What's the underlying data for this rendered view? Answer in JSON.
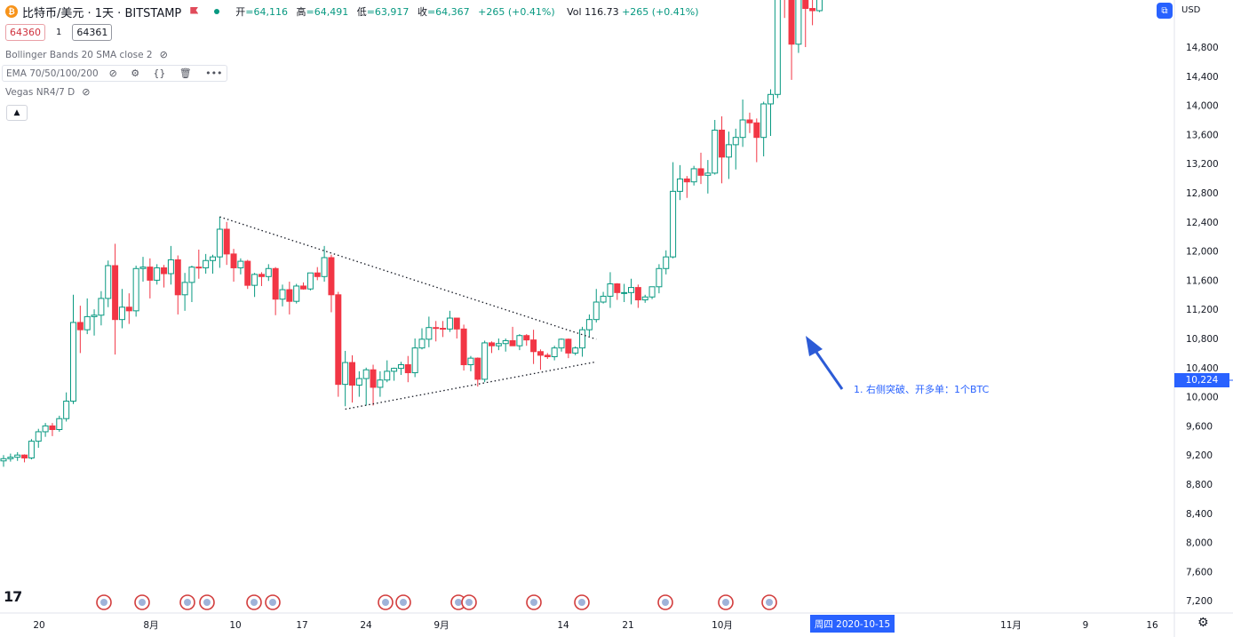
{
  "header": {
    "symbol_icon": "bitcoin-icon",
    "title": "比特币/美元 · 1天 · BITSTAMP",
    "open_label": "开",
    "open": "=64,116",
    "high_label": "高",
    "high": "=64,491",
    "low_label": "低",
    "low": "=63,917",
    "close_label": "收",
    "close": "=64,367",
    "change": "+265 (+0.41%)",
    "vol_label": "Vol",
    "vol": "116.73",
    "vol_change": "+265 (+0.41%)"
  },
  "trade": {
    "sell_price": "64360",
    "spread": "1",
    "buy_price": "64361"
  },
  "indicators": {
    "bollinger": "Bollinger Bands 20 SMA close 2",
    "ema": "EMA 70/50/100/200",
    "vegas": "Vegas NR4/7 D"
  },
  "currency": "USD",
  "annotation": "1. 右侧突破、开多单：1个BTC",
  "current_date": "周四 2020-10-15",
  "current_price": "10,224",
  "colors": {
    "up": "#089981",
    "down": "#f23645",
    "accent": "#2962ff"
  },
  "chart_data": {
    "type": "candlestick",
    "y_ticks": [
      "14,800",
      "14,400",
      "14,000",
      "13,600",
      "13,200",
      "12,800",
      "12,400",
      "12,000",
      "11,600",
      "11,200",
      "10,800",
      "10,400",
      "10,000",
      "9,600",
      "9,200",
      "8,800",
      "8,400",
      "8,000",
      "7,600",
      "7,200"
    ],
    "x_ticks": [
      "20",
      "8月",
      "10",
      "17",
      "24",
      "9月",
      "14",
      "21",
      "10月",
      "",
      "11月",
      "9",
      "16"
    ],
    "ylim": [
      7120,
      15400
    ],
    "candles": [
      {
        "d": "2020-07-17",
        "o": 9120,
        "h": 9200,
        "l": 9040,
        "c": 9150
      },
      {
        "d": "2020-07-18",
        "o": 9150,
        "h": 9220,
        "l": 9110,
        "c": 9170
      },
      {
        "d": "2020-07-19",
        "o": 9170,
        "h": 9240,
        "l": 9120,
        "c": 9200
      },
      {
        "d": "2020-07-20",
        "o": 9200,
        "h": 9210,
        "l": 9100,
        "c": 9160
      },
      {
        "d": "2020-07-21",
        "o": 9160,
        "h": 9420,
        "l": 9140,
        "c": 9390
      },
      {
        "d": "2020-07-22",
        "o": 9390,
        "h": 9560,
        "l": 9300,
        "c": 9520
      },
      {
        "d": "2020-07-23",
        "o": 9520,
        "h": 9640,
        "l": 9450,
        "c": 9600
      },
      {
        "d": "2020-07-24",
        "o": 9600,
        "h": 9640,
        "l": 9460,
        "c": 9550
      },
      {
        "d": "2020-07-25",
        "o": 9550,
        "h": 9740,
        "l": 9520,
        "c": 9700
      },
      {
        "d": "2020-07-26",
        "o": 9700,
        "h": 10060,
        "l": 9660,
        "c": 9940
      },
      {
        "d": "2020-07-27",
        "o": 9940,
        "h": 11400,
        "l": 9900,
        "c": 11020
      },
      {
        "d": "2020-07-28",
        "o": 11020,
        "h": 11250,
        "l": 10600,
        "c": 10920
      },
      {
        "d": "2020-07-29",
        "o": 10920,
        "h": 11350,
        "l": 10860,
        "c": 11100
      },
      {
        "d": "2020-07-30",
        "o": 11100,
        "h": 11200,
        "l": 10840,
        "c": 11120
      },
      {
        "d": "2020-07-31",
        "o": 11120,
        "h": 11450,
        "l": 10980,
        "c": 11350
      },
      {
        "d": "2020-08-01",
        "o": 11350,
        "h": 11870,
        "l": 11230,
        "c": 11800
      },
      {
        "d": "2020-08-02",
        "o": 11800,
        "h": 12100,
        "l": 10580,
        "c": 11060
      },
      {
        "d": "2020-08-03",
        "o": 11060,
        "h": 11480,
        "l": 10940,
        "c": 11230
      },
      {
        "d": "2020-08-04",
        "o": 11230,
        "h": 11420,
        "l": 11000,
        "c": 11180
      },
      {
        "d": "2020-08-05",
        "o": 11180,
        "h": 11800,
        "l": 11100,
        "c": 11760
      },
      {
        "d": "2020-08-06",
        "o": 11760,
        "h": 11920,
        "l": 11580,
        "c": 11780
      },
      {
        "d": "2020-08-07",
        "o": 11780,
        "h": 11900,
        "l": 11350,
        "c": 11600
      },
      {
        "d": "2020-08-08",
        "o": 11600,
        "h": 11820,
        "l": 11540,
        "c": 11770
      },
      {
        "d": "2020-08-09",
        "o": 11770,
        "h": 11810,
        "l": 11500,
        "c": 11690
      },
      {
        "d": "2020-08-10",
        "o": 11690,
        "h": 12070,
        "l": 11540,
        "c": 11880
      },
      {
        "d": "2020-08-11",
        "o": 11880,
        "h": 11940,
        "l": 11130,
        "c": 11400
      },
      {
        "d": "2020-08-12",
        "o": 11400,
        "h": 11700,
        "l": 11180,
        "c": 11570
      },
      {
        "d": "2020-08-13",
        "o": 11570,
        "h": 11800,
        "l": 11300,
        "c": 11780
      },
      {
        "d": "2020-08-14",
        "o": 11780,
        "h": 12020,
        "l": 11620,
        "c": 11770
      },
      {
        "d": "2020-08-15",
        "o": 11770,
        "h": 11960,
        "l": 11690,
        "c": 11870
      },
      {
        "d": "2020-08-16",
        "o": 11870,
        "h": 11950,
        "l": 11690,
        "c": 11920
      },
      {
        "d": "2020-08-17",
        "o": 11920,
        "h": 12470,
        "l": 11770,
        "c": 12300
      },
      {
        "d": "2020-08-18",
        "o": 12300,
        "h": 12400,
        "l": 11810,
        "c": 11960
      },
      {
        "d": "2020-08-19",
        "o": 11960,
        "h": 12030,
        "l": 11580,
        "c": 11770
      },
      {
        "d": "2020-08-20",
        "o": 11770,
        "h": 11900,
        "l": 11680,
        "c": 11860
      },
      {
        "d": "2020-08-21",
        "o": 11860,
        "h": 11880,
        "l": 11480,
        "c": 11530
      },
      {
        "d": "2020-08-22",
        "o": 11530,
        "h": 11700,
        "l": 11370,
        "c": 11680
      },
      {
        "d": "2020-08-23",
        "o": 11680,
        "h": 11710,
        "l": 11520,
        "c": 11650
      },
      {
        "d": "2020-08-24",
        "o": 11650,
        "h": 11820,
        "l": 11590,
        "c": 11760
      },
      {
        "d": "2020-08-25",
        "o": 11760,
        "h": 11780,
        "l": 11120,
        "c": 11340
      },
      {
        "d": "2020-08-26",
        "o": 11340,
        "h": 11540,
        "l": 11240,
        "c": 11470
      },
      {
        "d": "2020-08-27",
        "o": 11470,
        "h": 11580,
        "l": 11130,
        "c": 11310
      },
      {
        "d": "2020-08-28",
        "o": 11310,
        "h": 11550,
        "l": 11280,
        "c": 11520
      },
      {
        "d": "2020-08-29",
        "o": 11520,
        "h": 11570,
        "l": 11470,
        "c": 11480
      },
      {
        "d": "2020-08-30",
        "o": 11480,
        "h": 11700,
        "l": 11460,
        "c": 11700
      },
      {
        "d": "2020-08-31",
        "o": 11700,
        "h": 11780,
        "l": 11600,
        "c": 11650
      },
      {
        "d": "2020-09-01",
        "o": 11650,
        "h": 12070,
        "l": 11580,
        "c": 11910
      },
      {
        "d": "2020-09-02",
        "o": 11910,
        "h": 11950,
        "l": 11160,
        "c": 11400
      },
      {
        "d": "2020-09-03",
        "o": 11400,
        "h": 11440,
        "l": 10000,
        "c": 10170
      },
      {
        "d": "2020-09-04",
        "o": 10170,
        "h": 10630,
        "l": 9870,
        "c": 10470
      },
      {
        "d": "2020-09-05",
        "o": 10470,
        "h": 10570,
        "l": 9920,
        "c": 10160
      },
      {
        "d": "2020-09-06",
        "o": 10160,
        "h": 10350,
        "l": 10000,
        "c": 10250
      },
      {
        "d": "2020-09-07",
        "o": 10250,
        "h": 10400,
        "l": 9880,
        "c": 10370
      },
      {
        "d": "2020-09-08",
        "o": 10370,
        "h": 10440,
        "l": 9880,
        "c": 10130
      },
      {
        "d": "2020-09-09",
        "o": 10130,
        "h": 10350,
        "l": 10000,
        "c": 10230
      },
      {
        "d": "2020-09-10",
        "o": 10230,
        "h": 10500,
        "l": 10200,
        "c": 10350
      },
      {
        "d": "2020-09-11",
        "o": 10350,
        "h": 10400,
        "l": 10220,
        "c": 10390
      },
      {
        "d": "2020-09-12",
        "o": 10390,
        "h": 10480,
        "l": 10300,
        "c": 10440
      },
      {
        "d": "2020-09-13",
        "o": 10440,
        "h": 10560,
        "l": 10200,
        "c": 10330
      },
      {
        "d": "2020-09-14",
        "o": 10330,
        "h": 10800,
        "l": 10270,
        "c": 10670
      },
      {
        "d": "2020-09-15",
        "o": 10670,
        "h": 10940,
        "l": 10650,
        "c": 10790
      },
      {
        "d": "2020-09-16",
        "o": 10790,
        "h": 11100,
        "l": 10680,
        "c": 10950
      },
      {
        "d": "2020-09-17",
        "o": 10950,
        "h": 11040,
        "l": 10760,
        "c": 10940
      },
      {
        "d": "2020-09-18",
        "o": 10940,
        "h": 11040,
        "l": 10820,
        "c": 10930
      },
      {
        "d": "2020-09-19",
        "o": 10930,
        "h": 11180,
        "l": 10890,
        "c": 11080
      },
      {
        "d": "2020-09-20",
        "o": 11080,
        "h": 11080,
        "l": 10800,
        "c": 10930
      },
      {
        "d": "2020-09-21",
        "o": 10930,
        "h": 10990,
        "l": 10360,
        "c": 10440
      },
      {
        "d": "2020-09-22",
        "o": 10440,
        "h": 10560,
        "l": 10350,
        "c": 10530
      },
      {
        "d": "2020-09-23",
        "o": 10530,
        "h": 10540,
        "l": 10140,
        "c": 10240
      },
      {
        "d": "2020-09-24",
        "o": 10240,
        "h": 10770,
        "l": 10200,
        "c": 10740
      },
      {
        "d": "2020-09-25",
        "o": 10740,
        "h": 10760,
        "l": 10600,
        "c": 10700
      },
      {
        "d": "2020-09-26",
        "o": 10700,
        "h": 10800,
        "l": 10640,
        "c": 10730
      },
      {
        "d": "2020-09-27",
        "o": 10730,
        "h": 10800,
        "l": 10620,
        "c": 10770
      },
      {
        "d": "2020-09-28",
        "o": 10770,
        "h": 10960,
        "l": 10700,
        "c": 10700
      },
      {
        "d": "2020-09-29",
        "o": 10700,
        "h": 10860,
        "l": 10640,
        "c": 10840
      },
      {
        "d": "2020-09-30",
        "o": 10840,
        "h": 10860,
        "l": 10700,
        "c": 10780
      },
      {
        "d": "2020-10-01",
        "o": 10780,
        "h": 10920,
        "l": 10450,
        "c": 10620
      },
      {
        "d": "2020-10-02",
        "o": 10620,
        "h": 10650,
        "l": 10370,
        "c": 10570
      },
      {
        "d": "2020-10-03",
        "o": 10570,
        "h": 10600,
        "l": 10520,
        "c": 10550
      },
      {
        "d": "2020-10-04",
        "o": 10550,
        "h": 10700,
        "l": 10500,
        "c": 10670
      },
      {
        "d": "2020-10-05",
        "o": 10670,
        "h": 10800,
        "l": 10620,
        "c": 10790
      },
      {
        "d": "2020-10-06",
        "o": 10790,
        "h": 10800,
        "l": 10530,
        "c": 10600
      },
      {
        "d": "2020-10-07",
        "o": 10600,
        "h": 10690,
        "l": 10570,
        "c": 10670
      },
      {
        "d": "2020-10-08",
        "o": 10670,
        "h": 10960,
        "l": 10550,
        "c": 10920
      },
      {
        "d": "2020-10-09",
        "o": 10920,
        "h": 11130,
        "l": 10830,
        "c": 11060
      },
      {
        "d": "2020-10-10",
        "o": 11060,
        "h": 11480,
        "l": 11020,
        "c": 11300
      },
      {
        "d": "2020-10-11",
        "o": 11300,
        "h": 11440,
        "l": 11280,
        "c": 11380
      },
      {
        "d": "2020-10-12",
        "o": 11380,
        "h": 11710,
        "l": 11220,
        "c": 11550
      },
      {
        "d": "2020-10-13",
        "o": 11550,
        "h": 11560,
        "l": 11330,
        "c": 11430
      },
      {
        "d": "2020-10-14",
        "o": 11430,
        "h": 11550,
        "l": 11300,
        "c": 11430
      },
      {
        "d": "2020-10-15",
        "o": 11430,
        "h": 11620,
        "l": 11270,
        "c": 11500
      },
      {
        "d": "2020-10-16",
        "o": 11500,
        "h": 11540,
        "l": 11220,
        "c": 11330
      },
      {
        "d": "2020-10-17",
        "o": 11330,
        "h": 11400,
        "l": 11290,
        "c": 11370
      },
      {
        "d": "2020-10-18",
        "o": 11370,
        "h": 11490,
        "l": 11340,
        "c": 11510
      },
      {
        "d": "2020-10-19",
        "o": 11510,
        "h": 11820,
        "l": 11420,
        "c": 11760
      },
      {
        "d": "2020-10-20",
        "o": 11760,
        "h": 12010,
        "l": 11680,
        "c": 11920
      },
      {
        "d": "2020-10-21",
        "o": 11920,
        "h": 13220,
        "l": 11900,
        "c": 12820
      },
      {
        "d": "2020-10-22",
        "o": 12820,
        "h": 13180,
        "l": 12700,
        "c": 12990
      },
      {
        "d": "2020-10-23",
        "o": 12990,
        "h": 13030,
        "l": 12730,
        "c": 12950
      },
      {
        "d": "2020-10-24",
        "o": 12950,
        "h": 13170,
        "l": 12900,
        "c": 13130
      },
      {
        "d": "2020-10-25",
        "o": 13130,
        "h": 13350,
        "l": 12920,
        "c": 13040
      },
      {
        "d": "2020-10-26",
        "o": 13040,
        "h": 13250,
        "l": 12790,
        "c": 13070
      },
      {
        "d": "2020-10-27",
        "o": 13070,
        "h": 13800,
        "l": 13050,
        "c": 13660
      },
      {
        "d": "2020-10-28",
        "o": 13660,
        "h": 13850,
        "l": 12930,
        "c": 13290
      },
      {
        "d": "2020-10-29",
        "o": 13290,
        "h": 13640,
        "l": 12990,
        "c": 13460
      },
      {
        "d": "2020-10-30",
        "o": 13460,
        "h": 13680,
        "l": 13120,
        "c": 13560
      },
      {
        "d": "2020-10-31",
        "o": 13560,
        "h": 14080,
        "l": 13430,
        "c": 13800
      },
      {
        "d": "2020-11-01",
        "o": 13800,
        "h": 13900,
        "l": 13620,
        "c": 13760
      },
      {
        "d": "2020-11-02",
        "o": 13760,
        "h": 13820,
        "l": 13220,
        "c": 13560
      },
      {
        "d": "2020-11-03",
        "o": 13560,
        "h": 14050,
        "l": 13300,
        "c": 14020
      },
      {
        "d": "2020-11-04",
        "o": 14020,
        "h": 14220,
        "l": 13580,
        "c": 14150
      },
      {
        "d": "2020-11-05",
        "o": 14150,
        "h": 15700,
        "l": 14100,
        "c": 15600
      },
      {
        "d": "2020-11-06",
        "o": 15600,
        "h": 15970,
        "l": 15200,
        "c": 15590
      },
      {
        "d": "2020-11-07",
        "o": 15590,
        "h": 15770,
        "l": 14350,
        "c": 14840
      },
      {
        "d": "2020-11-08",
        "o": 14840,
        "h": 15650,
        "l": 14720,
        "c": 15480
      },
      {
        "d": "2020-11-09",
        "o": 15480,
        "h": 15840,
        "l": 14800,
        "c": 15330
      },
      {
        "d": "2020-11-10",
        "o": 15330,
        "h": 15470,
        "l": 15100,
        "c": 15300
      },
      {
        "d": "2020-11-11",
        "o": 15300,
        "h": 15960,
        "l": 15280,
        "c": 15700
      }
    ],
    "trendlines": [
      {
        "name": "upper",
        "from": [
          "2020-08-17",
          12470
        ],
        "to": [
          "2020-10-10",
          10790
        ]
      },
      {
        "name": "lower",
        "from": [
          "2020-09-04",
          9830
        ],
        "to": [
          "2020-10-10",
          10480
        ]
      }
    ]
  }
}
